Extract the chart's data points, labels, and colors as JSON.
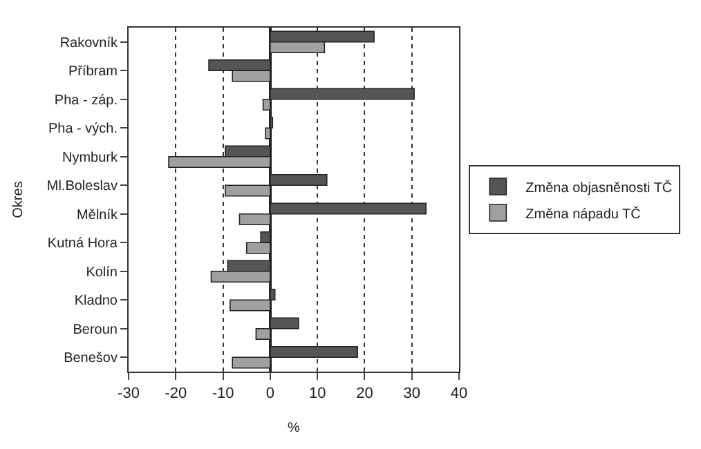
{
  "chart_data": {
    "type": "bar",
    "orientation": "horizontal",
    "xlabel": "%",
    "ylabel": "Okres",
    "categories": [
      "Rakovník",
      "Příbram",
      "Pha - záp.",
      "Pha - vých.",
      "Nymburk",
      "Ml.Boleslav",
      "Mělník",
      "Kutná Hora",
      "Kolín",
      "Kladno",
      "Beroun",
      "Benešov"
    ],
    "series": [
      {
        "name": "Změna objasněnosti TČ",
        "color": "#555555",
        "values": [
          22,
          -13,
          30.5,
          0.5,
          -9.5,
          12,
          33,
          -2,
          -9,
          1,
          6,
          18.5
        ]
      },
      {
        "name": "Změna nápadu TČ",
        "color": "#a0a0a0",
        "values": [
          11.5,
          -8,
          -1.5,
          -1,
          -21.5,
          -9.5,
          -6.5,
          -5,
          -12.5,
          -8.5,
          -3,
          -8
        ]
      }
    ],
    "xlim": [
      -30,
      40
    ],
    "xticks": [
      -30,
      -20,
      -10,
      0,
      10,
      20,
      30,
      40
    ],
    "grid": "x",
    "legend": "right"
  }
}
